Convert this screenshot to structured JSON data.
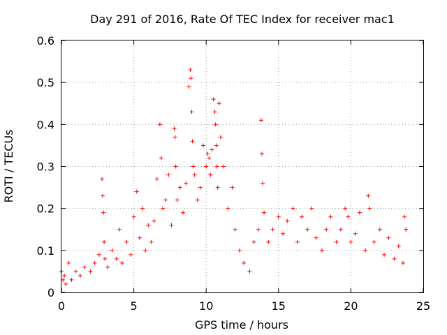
{
  "chart_data": {
    "type": "scatter",
    "title": "Day 291 of 2016, Rate Of TEC Index for receiver mac1",
    "xlabel": "GPS time / hours",
    "ylabel": "ROTI / TECUs",
    "xlim": [
      0,
      25
    ],
    "ylim": [
      0,
      0.6
    ],
    "x_ticks": [
      "0",
      "5",
      "10",
      "15",
      "20",
      "25"
    ],
    "y_ticks": [
      "0",
      "0.1",
      "0.2",
      "0.3",
      "0.4",
      "0.5",
      "0.6"
    ],
    "grid": true,
    "marker": "+",
    "color": "#ff0000",
    "series": [
      {
        "name": "ROTI",
        "x": [
          0.0,
          0.1,
          0.2,
          0.3,
          0.5,
          0.7,
          1.0,
          1.3,
          1.6,
          2.0,
          2.3,
          2.6,
          2.8,
          2.85,
          2.9,
          2.95,
          3.0,
          3.2,
          3.5,
          3.8,
          4.0,
          4.2,
          4.5,
          4.8,
          5.0,
          5.2,
          5.4,
          5.6,
          5.8,
          6.0,
          6.2,
          6.4,
          6.6,
          6.8,
          6.9,
          7.0,
          7.2,
          7.4,
          7.6,
          7.8,
          7.85,
          7.9,
          8.0,
          8.2,
          8.4,
          8.6,
          8.8,
          8.9,
          8.95,
          9.0,
          9.05,
          9.1,
          9.2,
          9.4,
          9.6,
          9.8,
          10.0,
          10.1,
          10.2,
          10.3,
          10.4,
          10.5,
          10.6,
          10.65,
          10.7,
          10.75,
          10.8,
          10.9,
          11.0,
          11.2,
          11.5,
          11.8,
          12.0,
          12.3,
          12.6,
          13.0,
          13.3,
          13.6,
          13.8,
          13.85,
          13.9,
          14.0,
          14.3,
          14.6,
          15.0,
          15.3,
          15.6,
          16.0,
          16.3,
          16.6,
          17.0,
          17.3,
          17.6,
          18.0,
          18.3,
          18.6,
          19.0,
          19.3,
          19.6,
          19.8,
          20.0,
          20.3,
          20.6,
          21.0,
          21.2,
          21.3,
          21.6,
          22.0,
          22.3,
          22.6,
          23.0,
          23.3,
          23.6,
          23.7,
          23.8
        ],
        "y": [
          0.05,
          0.03,
          0.04,
          0.02,
          0.07,
          0.03,
          0.05,
          0.04,
          0.06,
          0.05,
          0.07,
          0.09,
          0.27,
          0.23,
          0.19,
          0.12,
          0.08,
          0.06,
          0.1,
          0.08,
          0.15,
          0.07,
          0.12,
          0.09,
          0.18,
          0.24,
          0.13,
          0.2,
          0.1,
          0.16,
          0.12,
          0.17,
          0.27,
          0.4,
          0.32,
          0.2,
          0.22,
          0.28,
          0.16,
          0.39,
          0.37,
          0.3,
          0.22,
          0.25,
          0.19,
          0.26,
          0.49,
          0.53,
          0.51,
          0.43,
          0.36,
          0.3,
          0.28,
          0.22,
          0.25,
          0.35,
          0.3,
          0.33,
          0.32,
          0.28,
          0.34,
          0.46,
          0.43,
          0.4,
          0.35,
          0.3,
          0.25,
          0.45,
          0.37,
          0.3,
          0.2,
          0.25,
          0.15,
          0.1,
          0.07,
          0.05,
          0.12,
          0.15,
          0.41,
          0.33,
          0.26,
          0.19,
          0.12,
          0.15,
          0.18,
          0.14,
          0.17,
          0.2,
          0.12,
          0.18,
          0.15,
          0.2,
          0.13,
          0.1,
          0.15,
          0.18,
          0.12,
          0.15,
          0.2,
          0.18,
          0.12,
          0.14,
          0.19,
          0.1,
          0.23,
          0.2,
          0.12,
          0.15,
          0.09,
          0.13,
          0.08,
          0.11,
          0.07,
          0.18,
          0.15
        ]
      }
    ]
  }
}
